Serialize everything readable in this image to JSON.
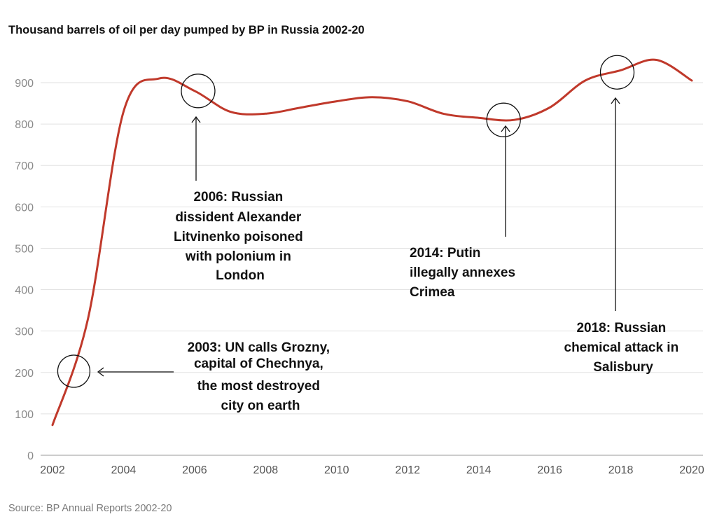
{
  "chart_data": {
    "type": "line",
    "title": "Thousand barrels of oil per day pumped by BP in Russia 2002-20",
    "source": "Source: BP Annual Reports 2002-20",
    "xlim": [
      2002,
      2020
    ],
    "ylim": [
      0,
      950
    ],
    "x_ticks": [
      2002,
      2004,
      2006,
      2008,
      2010,
      2012,
      2014,
      2016,
      2018,
      2020
    ],
    "y_ticks": [
      0,
      100,
      200,
      300,
      400,
      500,
      600,
      700,
      800,
      900
    ],
    "grid": true,
    "series_color": "#c0392b",
    "series": [
      {
        "x": [
          2002,
          2003,
          2004,
          2005,
          2006,
          2007,
          2008,
          2009,
          2010,
          2011,
          2012,
          2013,
          2014,
          2015,
          2016,
          2017,
          2018,
          2019,
          2020
        ],
        "values": [
          73,
          330,
          830,
          910,
          880,
          830,
          825,
          840,
          855,
          865,
          855,
          825,
          815,
          810,
          840,
          905,
          930,
          955,
          905
        ]
      }
    ],
    "annotations": [
      {
        "x": 2002.6,
        "y": 203,
        "lines": [
          "2003: UN calls Grozny,",
          "capital of Chechnya,",
          "the most destroyed",
          "city on earth"
        ]
      },
      {
        "x": 2006.1,
        "y": 880,
        "lines": [
          "2006: Russian",
          "dissident Alexander",
          "Litvinenko poisoned",
          "with polonium in",
          "London"
        ]
      },
      {
        "x": 2014.7,
        "y": 810,
        "lines": [
          "2014: Putin",
          "illegally annexes",
          "Crimea"
        ]
      },
      {
        "x": 2017.9,
        "y": 925,
        "lines": [
          "2018: Russian",
          "chemical attack in",
          "Salisbury"
        ]
      }
    ]
  }
}
